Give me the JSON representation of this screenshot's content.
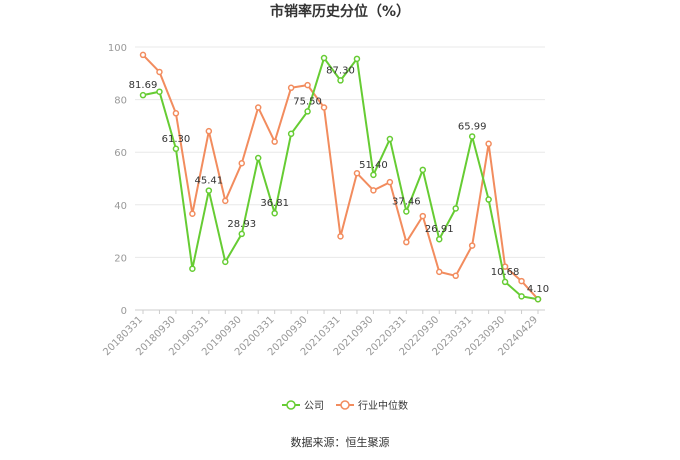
{
  "title": "市销率历史分位（%）",
  "source": "数据来源：恒生聚源",
  "chart_data": {
    "type": "line",
    "title": "市销率历史分位（%）",
    "ylim": [
      0,
      100
    ],
    "yticks": [
      0,
      20,
      40,
      60,
      80,
      100
    ],
    "grid": true,
    "legend_position": "bottom",
    "xtick_labels": [
      "20180331",
      "20180930",
      "20190331",
      "20190930",
      "20200331",
      "20200930",
      "20210331",
      "20210930",
      "20220331",
      "20220930",
      "20230331",
      "20230930",
      "20240429"
    ],
    "x": [
      "20180331",
      "20180630",
      "20180930",
      "20181231",
      "20190331",
      "20190630",
      "20190930",
      "20191231",
      "20200331",
      "20200630",
      "20200930",
      "20201231",
      "20210331",
      "20210630",
      "20210930",
      "20211231",
      "20220331",
      "20220630",
      "20220930",
      "20221231",
      "20230331",
      "20230630",
      "20230930",
      "20231231",
      "20240429"
    ],
    "series": [
      {
        "name": "公司",
        "color": "#66cc33",
        "values": [
          81.69,
          83.0,
          61.3,
          15.7,
          45.41,
          18.3,
          28.93,
          57.8,
          36.81,
          67.0,
          75.5,
          95.8,
          87.3,
          95.5,
          51.4,
          65.0,
          37.46,
          53.3,
          26.91,
          38.6,
          65.99,
          42.0,
          10.68,
          5.2,
          4.1
        ],
        "data_labels": [
          {
            "index": 0,
            "text": "81.69"
          },
          {
            "index": 2,
            "text": "61.30"
          },
          {
            "index": 4,
            "text": "45.41"
          },
          {
            "index": 6,
            "text": "28.93"
          },
          {
            "index": 8,
            "text": "36.81"
          },
          {
            "index": 10,
            "text": "75.50"
          },
          {
            "index": 12,
            "text": "87.30"
          },
          {
            "index": 14,
            "text": "51.40"
          },
          {
            "index": 16,
            "text": "37.46"
          },
          {
            "index": 18,
            "text": "26.91"
          },
          {
            "index": 20,
            "text": "65.99"
          },
          {
            "index": 22,
            "text": "10.68"
          },
          {
            "index": 24,
            "text": "4.10"
          }
        ]
      },
      {
        "name": "行业中位数",
        "color": "#f28c5e",
        "values": [
          97.0,
          90.5,
          74.8,
          36.6,
          68.0,
          41.5,
          55.8,
          77.0,
          64.0,
          84.5,
          85.5,
          77.0,
          28.0,
          52.0,
          45.5,
          48.6,
          25.8,
          35.7,
          14.5,
          13.0,
          24.5,
          63.2,
          16.5,
          11.0,
          4.1
        ]
      }
    ]
  }
}
